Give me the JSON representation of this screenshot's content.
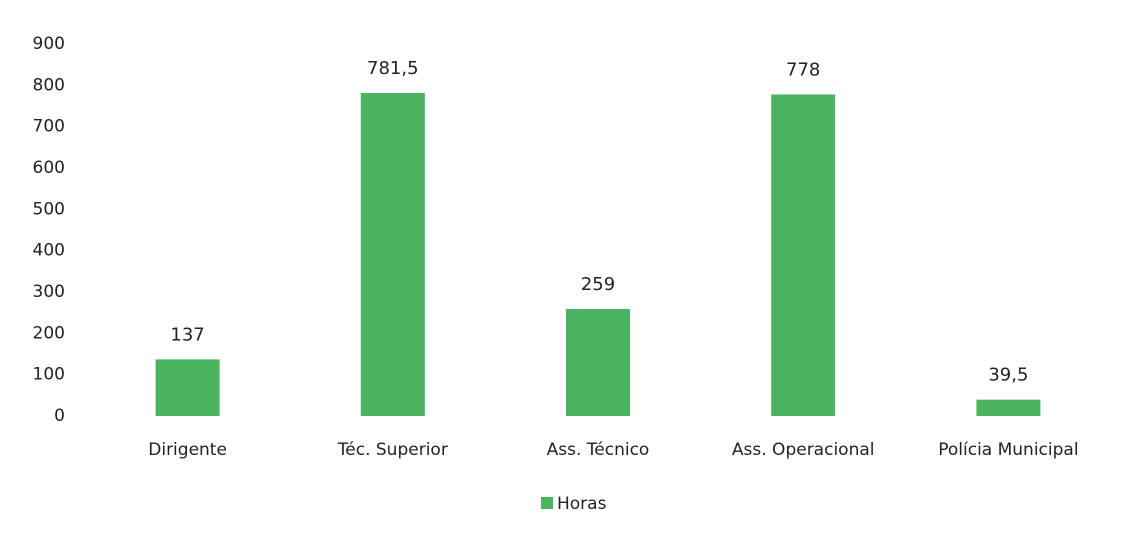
{
  "chart_data": {
    "type": "bar",
    "categories": [
      "Dirigente",
      "Téc. Superior",
      "Ass. Técnico",
      "Ass. Operacional",
      "Polícia Municipal"
    ],
    "series": [
      {
        "name": "Horas",
        "color": "#4cb461",
        "values": [
          137,
          781.5,
          259,
          778,
          39.5
        ],
        "value_labels": [
          "137",
          "781,5",
          "259",
          "778",
          "39,5"
        ]
      }
    ],
    "ylim": [
      0,
      900
    ],
    "yticks": [
      0,
      100,
      200,
      300,
      400,
      500,
      600,
      700,
      800,
      900
    ],
    "grid": false,
    "legend": "bottom"
  }
}
